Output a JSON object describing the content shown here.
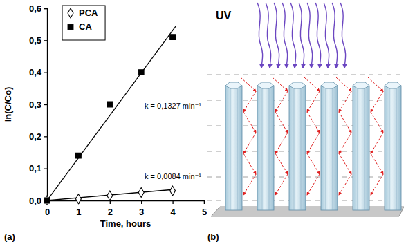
{
  "chart_data": {
    "type": "scatter",
    "x_label": "Time, hours",
    "y_label": "ln(C/Co)",
    "x": [
      0,
      1,
      2,
      3,
      4
    ],
    "series": [
      {
        "name": "PCA",
        "color": "#000000",
        "marker": "diamond-open",
        "line_style": "solid",
        "values": [
          0,
          0.005,
          0.015,
          0.025,
          0.03
        ],
        "fit_x": [
          0,
          4
        ],
        "fit_values": [
          0,
          0.034
        ]
      },
      {
        "name": "CA",
        "color": "#000000",
        "marker": "square",
        "line_style": "solid",
        "values": [
          0,
          0.14,
          0.3,
          0.4,
          0.51
        ],
        "fit_x": [
          0,
          4.1
        ],
        "fit_values": [
          0,
          0.544
        ]
      }
    ],
    "annotations": [
      "k = 0,1327 min⁻¹",
      "k = 0,0084 min⁻¹"
    ],
    "xlim": [
      0,
      5
    ],
    "xticks": [
      0,
      1,
      2,
      3,
      4,
      5
    ],
    "ylim": [
      0,
      0.6
    ],
    "yticks": [
      {
        "value": 0,
        "label": "0,0"
      },
      {
        "value": 0.1,
        "label": "0,1"
      },
      {
        "value": 0.2,
        "label": "0,2"
      },
      {
        "value": 0.3,
        "label": "0,3"
      },
      {
        "value": 0.4,
        "label": "0,4"
      },
      {
        "value": 0.5,
        "label": "0,5"
      },
      {
        "value": 0.6,
        "label": "0,6"
      }
    ],
    "legend": "upper left",
    "grid": false
  },
  "panel_labels": [
    "(a)",
    "(b)"
  ],
  "diagram": {
    "label": "UV"
  }
}
